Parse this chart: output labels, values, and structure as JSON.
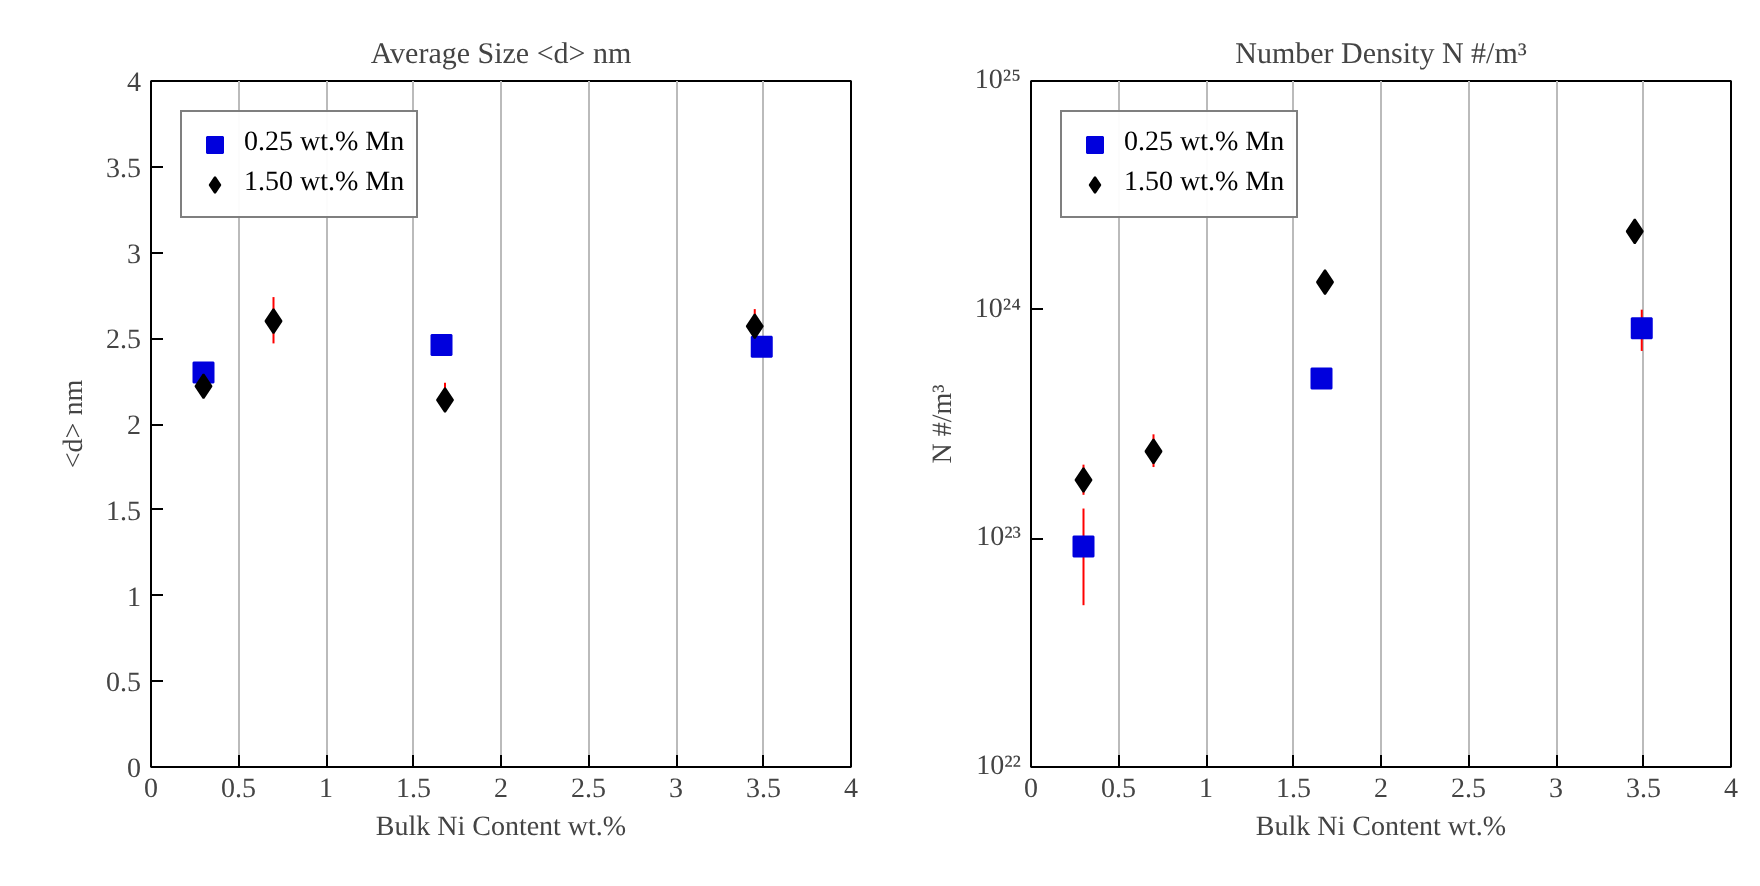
{
  "chart_data": [
    {
      "type": "scatter",
      "title": "Average Size <d> nm",
      "xlabel": "Bulk Ni Content wt.%",
      "ylabel": "<d> nm",
      "xlim": [
        0,
        4
      ],
      "ylim": [
        0,
        4
      ],
      "xticks": [
        0,
        0.5,
        1,
        1.5,
        2,
        2.5,
        3,
        3.5,
        4
      ],
      "yticks": [
        0,
        0.5,
        1,
        1.5,
        2,
        2.5,
        3,
        3.5,
        4
      ],
      "grid": "x",
      "legend": "top left",
      "series": [
        {
          "name": "0.25 wt.% Mn",
          "color": "#0000dd",
          "marker": "square",
          "x": [
            0.3,
            1.66,
            3.49
          ],
          "values": [
            2.3,
            2.46,
            2.45
          ]
        },
        {
          "name": "1.50 wt.% Mn",
          "color": "#000000",
          "marker": "diamond",
          "x": [
            0.3,
            0.7,
            1.68,
            3.45
          ],
          "values": [
            2.22,
            2.6,
            2.14,
            2.57
          ],
          "errors": [
            null,
            [
              2.47,
              2.74
            ],
            [
              2.07,
              2.24
            ],
            [
              2.52,
              2.67
            ]
          ]
        }
      ]
    },
    {
      "type": "scatter",
      "title": "Number Density N #/m³",
      "xlabel": "Bulk Ni Content wt.%",
      "ylabel": "N #/m³",
      "log": "y",
      "xlim": [
        0,
        4
      ],
      "ylim": [
        1e+22,
        1e+25
      ],
      "xticks": [
        0,
        0.5,
        1,
        1.5,
        2,
        2.5,
        3,
        3.5,
        4
      ],
      "yticks": [
        {
          "value": 1e+22,
          "label": "10²²"
        },
        {
          "value": 1e+23,
          "label": "10²³"
        },
        {
          "value": 1e+24,
          "label": "10²⁴"
        },
        {
          "value": 1e+25,
          "label": "10²⁵"
        }
      ],
      "grid": "x",
      "legend": "top left",
      "series": [
        {
          "name": "0.25 wt.% Mn",
          "color": "#0000dd",
          "marker": "square",
          "x": [
            0.3,
            1.66,
            3.49
          ],
          "values": [
            9.2e+22,
            5e+23,
            8.3e+23
          ],
          "errors": [
            [
              5.1e+22,
              1.35e+23
            ],
            null,
            [
              6.6e+23,
              1e+24
            ]
          ]
        },
        {
          "name": "1.50 wt.% Mn",
          "color": "#000000",
          "marker": "diamond",
          "x": [
            0.3,
            0.7,
            1.68,
            3.45
          ],
          "values": [
            1.8e+23,
            2.4e+23,
            1.32e+24,
            2.2e+24
          ],
          "errors": [
            [
              1.55e+23,
              2.1e+23
            ],
            [
              2.05e+23,
              2.85e+23
            ],
            null,
            null
          ]
        }
      ]
    }
  ]
}
